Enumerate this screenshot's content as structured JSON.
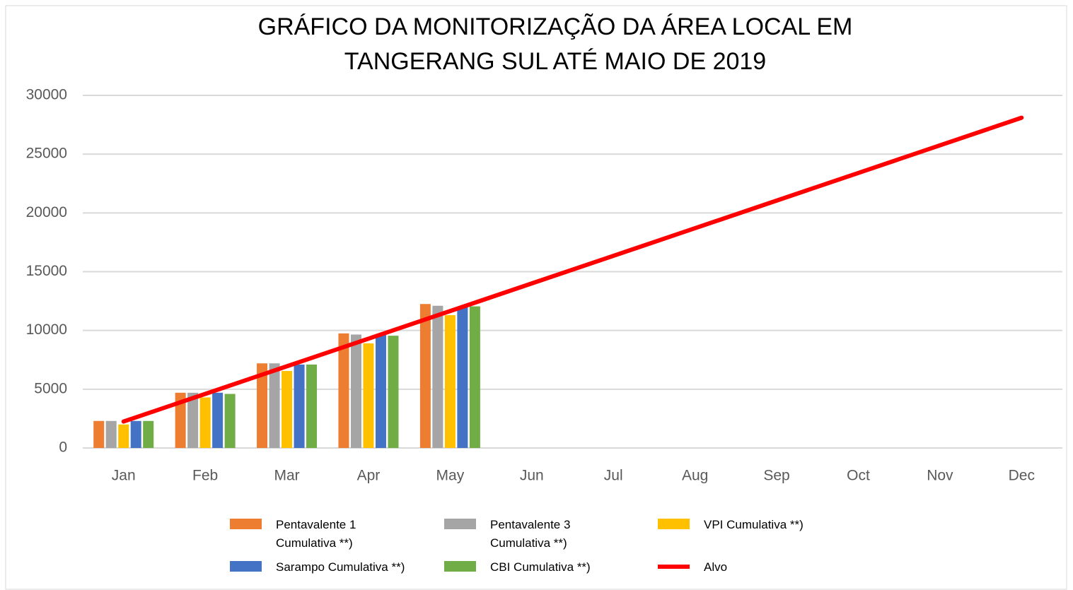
{
  "chart_data": {
    "type": "bar",
    "title": [
      "GRÁFICO DA MONITORIZAÇÃO DA ÁREA LOCAL EM",
      "TANGERANG SUL ATÉ MAIO DE 2019"
    ],
    "categories": [
      "Jan",
      "Feb",
      "Mar",
      "Apr",
      "May",
      "Jun",
      "Jul",
      "Aug",
      "Sep",
      "Oct",
      "Nov",
      "Dec"
    ],
    "series": [
      {
        "name": "Pentavalente 1 Cumulativa **)",
        "color": "#ed7d31",
        "values": [
          2300,
          4700,
          7200,
          9750,
          12250,
          null,
          null,
          null,
          null,
          null,
          null,
          null
        ]
      },
      {
        "name": "Pentavalente 3 Cumulativa **)",
        "color": "#a5a5a5",
        "values": [
          2300,
          4700,
          7200,
          9650,
          12100,
          null,
          null,
          null,
          null,
          null,
          null,
          null
        ]
      },
      {
        "name": "VPI Cumulativa **)",
        "color": "#ffc000",
        "values": [
          2000,
          4300,
          6550,
          8900,
          11300,
          null,
          null,
          null,
          null,
          null,
          null,
          null
        ]
      },
      {
        "name": "Sarampo Cumulativa **)",
        "color": "#4472c4",
        "values": [
          2300,
          4700,
          7100,
          9700,
          12000,
          null,
          null,
          null,
          null,
          null,
          null,
          null
        ]
      },
      {
        "name": "CBI Cumulativa **)",
        "color": "#70ad47",
        "values": [
          2300,
          4600,
          7100,
          9550,
          12050,
          null,
          null,
          null,
          null,
          null,
          null,
          null
        ]
      },
      {
        "name": "Alvo",
        "color": "#ff0000",
        "type": "line",
        "values": [
          2250,
          4600,
          6950,
          9300,
          11650,
          14000,
          16350,
          18700,
          21050,
          23400,
          25750,
          28100
        ]
      }
    ],
    "ylim": [
      0,
      30000
    ],
    "yticks": [
      0,
      5000,
      10000,
      15000,
      20000,
      25000,
      30000
    ],
    "grid": true,
    "legend": "bottom"
  }
}
